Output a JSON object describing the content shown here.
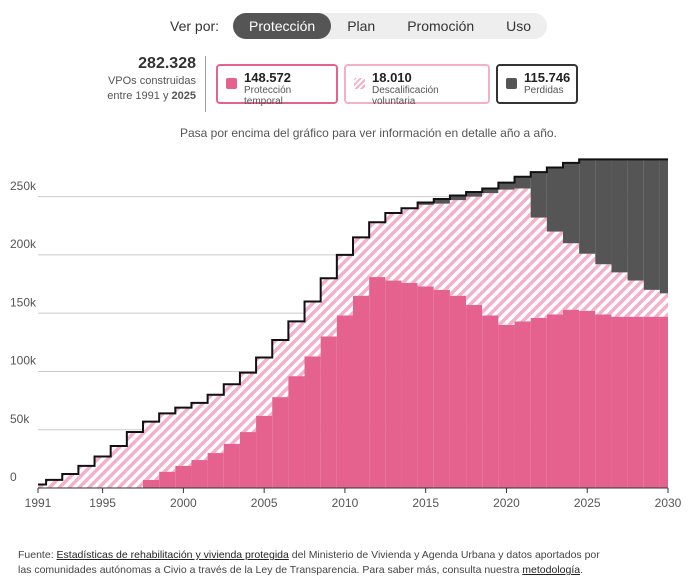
{
  "nav": {
    "label": "Ver por:",
    "tabs": [
      "Protección",
      "Plan",
      "Promoción",
      "Uso"
    ]
  },
  "summary": {
    "total": "282.328",
    "line1": "VPOs construidas",
    "line2": "entre 1991 y",
    "year": "2025",
    "boxes": [
      "148.572",
      "18.010",
      "115.746"
    ]
  },
  "hint": "Pasa por encima del gráfico para ver información en detalle año a año.",
  "footer": {
    "parts": [
      "Fuente: ",
      "Estadísticas de rehabilitación y vivienda protegida",
      " del Ministerio de Vivienda y Agenda Urbana y datos aportados por las comunidades autónomas a Civio a través de la Ley de Transparencia. Para saber más, consulta nuestra ",
      "metodología",
      "."
    ]
  },
  "chart_data": {
    "type": "stacked-step-area",
    "x": [
      1991,
      1992,
      1993,
      1994,
      1995,
      1996,
      1997,
      1998,
      1999,
      2000,
      2001,
      2002,
      2003,
      2004,
      2005,
      2006,
      2007,
      2008,
      2009,
      2010,
      2011,
      2012,
      2013,
      2014,
      2015,
      2016,
      2017,
      2018,
      2019,
      2020,
      2021,
      2022,
      2023,
      2024,
      2025,
      2026,
      2027,
      2028,
      2029,
      2030
    ],
    "series": [
      {
        "name": "Protección temporal",
        "color": "#e5628f",
        "values": [
          0,
          0,
          0,
          0,
          0,
          0,
          0,
          7000,
          14000,
          19000,
          24000,
          30000,
          38000,
          48000,
          62000,
          78000,
          96000,
          113000,
          130000,
          148000,
          165000,
          181000,
          178000,
          176000,
          173000,
          170000,
          165000,
          157000,
          148000,
          140000,
          143000,
          146000,
          149000,
          153000,
          152000,
          149000,
          147000,
          147000,
          147000,
          147000
        ]
      },
      {
        "name": "Descalificación voluntaria",
        "color": "#f3b0c8",
        "values": [
          3000,
          7000,
          12000,
          19000,
          27000,
          36000,
          48000,
          50000,
          50000,
          50000,
          49000,
          50000,
          51000,
          51000,
          50000,
          49000,
          47000,
          47000,
          50000,
          52000,
          50000,
          47000,
          58000,
          64000,
          70000,
          74000,
          82000,
          93000,
          105000,
          116000,
          114000,
          86000,
          71000,
          57000,
          49000,
          43000,
          38000,
          31000,
          23000,
          20000
        ]
      },
      {
        "name": "Perdidas",
        "color": "#555555",
        "values": [
          0,
          0,
          0,
          0,
          0,
          0,
          0,
          0,
          0,
          0,
          0,
          0,
          0,
          0,
          0,
          0,
          0,
          0,
          0,
          0,
          0,
          0,
          0,
          0,
          2000,
          4000,
          4000,
          4000,
          4000,
          6000,
          10000,
          39000,
          55000,
          69000,
          81000,
          90000,
          97000,
          104000,
          112000,
          115000
        ]
      }
    ],
    "xlim": [
      1991,
      2030
    ],
    "xticks": [
      1991,
      1995,
      2000,
      2005,
      2010,
      2015,
      2020,
      2025,
      2030
    ],
    "ylim": [
      0,
      290000
    ],
    "yticks": [
      {
        "value": 0,
        "label": "0"
      },
      {
        "value": 50000,
        "label": "50k"
      },
      {
        "value": 100000,
        "label": "100k"
      },
      {
        "value": 150000,
        "label": "150k"
      },
      {
        "value": 200000,
        "label": "200k"
      },
      {
        "value": 250000,
        "label": "250k"
      }
    ],
    "grid": true
  }
}
